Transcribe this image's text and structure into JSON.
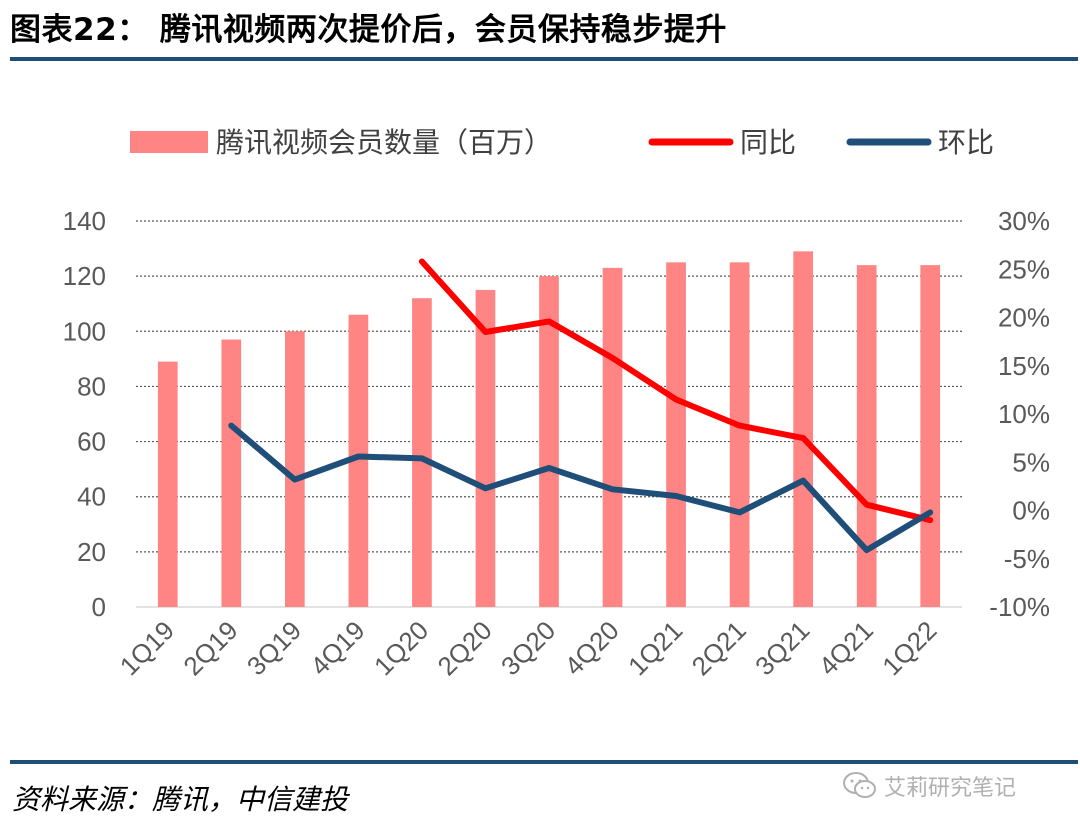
{
  "title": "图表22：  腾讯视频两次提价后，会员保持稳步提升",
  "source": "资料来源：腾讯，中信建投",
  "watermark": {
    "icon": "wechat-icon",
    "text": "艾莉研究笔记"
  },
  "colors": {
    "bar": "#ff8585",
    "yoy": "#ff0000",
    "qoq": "#1f4e79",
    "grid": "#595959",
    "rule": "#1f4e79"
  },
  "chart_data": {
    "type": "bar",
    "title": "腾讯视频两次提价后，会员保持稳步提升",
    "categories": [
      "1Q19",
      "2Q19",
      "3Q19",
      "4Q19",
      "1Q20",
      "2Q20",
      "3Q20",
      "4Q20",
      "1Q21",
      "2Q21",
      "3Q21",
      "4Q21",
      "1Q22"
    ],
    "series": [
      {
        "name": "腾讯视频会员数量（百万）",
        "type": "bar",
        "axis": "left",
        "values": [
          89,
          97,
          100,
          106,
          112,
          115,
          120,
          123,
          125,
          125,
          129,
          124,
          124
        ]
      },
      {
        "name": "同比",
        "type": "line",
        "axis": "right",
        "values": [
          null,
          null,
          null,
          null,
          25.8,
          18.5,
          19.6,
          15.8,
          11.5,
          8.8,
          7.5,
          0.6,
          -1.0
        ]
      },
      {
        "name": "环比",
        "type": "line",
        "axis": "right",
        "values": [
          null,
          8.8,
          3.2,
          5.6,
          5.4,
          2.3,
          4.4,
          2.2,
          1.5,
          -0.2,
          3.1,
          -4.1,
          -0.2
        ]
      }
    ],
    "left_axis": {
      "min": 0,
      "max": 140,
      "step": 20,
      "tick_labels": [
        "0",
        "20",
        "40",
        "60",
        "80",
        "100",
        "120",
        "140"
      ]
    },
    "right_axis": {
      "min": -10,
      "max": 30,
      "step": 5,
      "tick_labels": [
        "-10%",
        "-5%",
        "0%",
        "5%",
        "10%",
        "15%",
        "20%",
        "25%",
        "30%"
      ]
    },
    "grid": true,
    "legend_position": "top"
  }
}
